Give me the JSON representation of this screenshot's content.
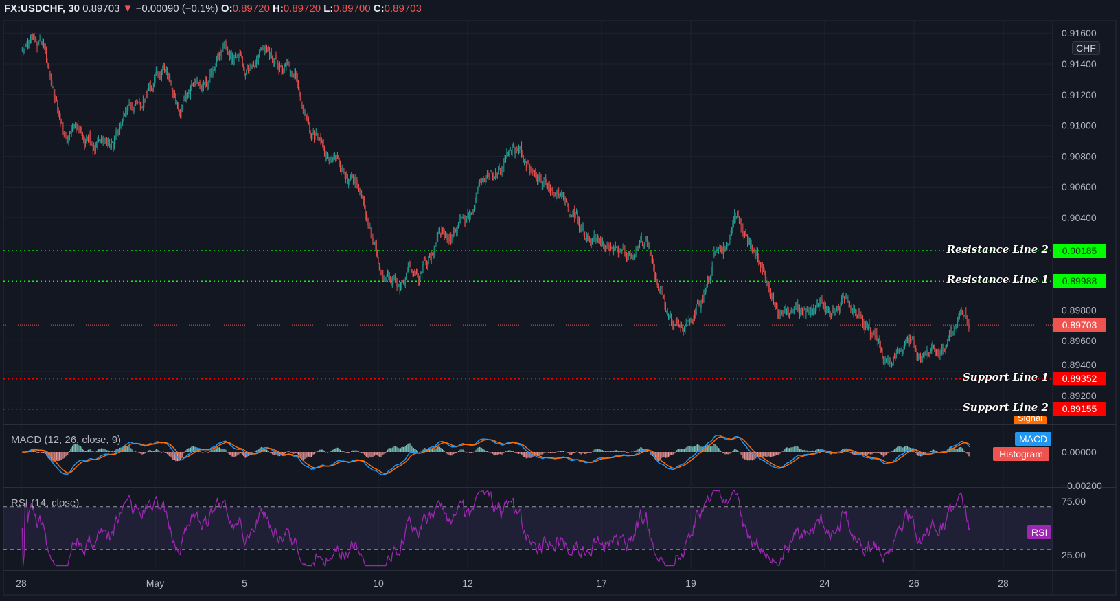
{
  "header": {
    "symbol": "FX:USDCHF, 30",
    "last": "0.89703",
    "change_arrow": "▼",
    "change": "−0.00090 (−0.1%)",
    "o_label": "O:",
    "o": "0.89720",
    "h_label": "H:",
    "h": "0.89720",
    "l_label": "L:",
    "l": "0.89700",
    "c_label": "C:",
    "c": "0.89703"
  },
  "currency_badge": "CHF",
  "colors": {
    "up": "#26a69a",
    "down": "#ef5350",
    "resistance": "#00ff00",
    "support": "#ff0000",
    "macd": "#2196f3",
    "signal": "#ff6d00",
    "histogram": "#ef5350",
    "rsi": "#9c27b0",
    "background": "#131722"
  },
  "levels": [
    {
      "label": "Resistance Line 2",
      "value": "0.90185",
      "price": 0.90185,
      "kind": "resistance"
    },
    {
      "label": "Resistance Line 1",
      "value": "0.89988",
      "price": 0.89988,
      "kind": "resistance"
    },
    {
      "label": "Support Line 1",
      "value": "0.89352",
      "price": 0.89352,
      "kind": "support"
    },
    {
      "label": "Support Line 2",
      "value": "0.89155",
      "price": 0.89155,
      "kind": "support"
    }
  ],
  "current_price": {
    "value": "0.89703",
    "price": 0.89703
  },
  "macd": {
    "title": "MACD (12, 26, close, 9)",
    "signal_label": "Signal",
    "macd_label": "MACD",
    "hist_label": "Histogram",
    "ticks": [
      "0.00000",
      "−0.00200"
    ]
  },
  "rsi": {
    "title": "RSI (14, close)",
    "label": "RSI",
    "ticks": [
      "75.00",
      "25.00"
    ],
    "upper_band": 70,
    "lower_band": 30
  },
  "chart_data": {
    "type": "candlestick",
    "timeframe": "30",
    "price_ticks": [
      "0.91600",
      "0.91400",
      "0.91200",
      "0.91000",
      "0.90800",
      "0.90600",
      "0.90400",
      "0.89800",
      "0.89600",
      "0.89400",
      "0.89200"
    ],
    "ylim": [
      0.8905,
      0.917
    ],
    "x_ticks": [
      "28",
      "May",
      "5",
      "10",
      "12",
      "17",
      "19",
      "24",
      "26",
      "28"
    ],
    "trading_days": [
      "Apr 28",
      "Apr 29",
      "Apr 30",
      "May 3",
      "May 4",
      "May 5",
      "May 6",
      "May 7",
      "May 10",
      "May 11",
      "May 12",
      "May 13",
      "May 14",
      "May 17",
      "May 18",
      "May 19",
      "May 20",
      "May 21",
      "May 24",
      "May 25",
      "May 26",
      "May 27",
      "May 28"
    ],
    "close_path": [
      [
        "Apr 28 00:00",
        0.9149
      ],
      [
        "Apr 28 12:00",
        0.9153
      ],
      [
        "Apr 29 00:00",
        0.9092
      ],
      [
        "Apr 29 12:00",
        0.9092
      ],
      [
        "Apr 30 00:00",
        0.9086
      ],
      [
        "Apr 30 12:00",
        0.9109
      ],
      [
        "May 3 00:00",
        0.9133
      ],
      [
        "May 3 12:00",
        0.9112
      ],
      [
        "May 4 00:00",
        0.9126
      ],
      [
        "May 4 12:00",
        0.9149
      ],
      [
        "May 5 00:00",
        0.9133
      ],
      [
        "May 5 12:00",
        0.9149
      ],
      [
        "May 6 00:00",
        0.9139
      ],
      [
        "May 6 12:00",
        0.9093
      ],
      [
        "May 7 00:00",
        0.9079
      ],
      [
        "May 7 12:00",
        0.9065
      ],
      [
        "May 10 00:00",
        0.901
      ],
      [
        "May 10 12:00",
        0.8996
      ],
      [
        "May 11 00:00",
        0.901
      ],
      [
        "May 11 12:00",
        0.9028
      ],
      [
        "May 12 00:00",
        0.9042
      ],
      [
        "May 12 12:00",
        0.907
      ],
      [
        "May 13 00:00",
        0.9086
      ],
      [
        "May 13 12:00",
        0.907
      ],
      [
        "May 14 00:00",
        0.9058
      ],
      [
        "May 14 12:00",
        0.9033
      ],
      [
        "May 17 00:00",
        0.9024
      ],
      [
        "May 17 12:00",
        0.9019
      ],
      [
        "May 18 00:00",
        0.9028
      ],
      [
        "May 18 12:00",
        0.8977
      ],
      [
        "May 19 00:00",
        0.8973
      ],
      [
        "May 19 12:00",
        0.9014
      ],
      [
        "May 20 00:00",
        0.904
      ],
      [
        "May 20 12:00",
        0.9014
      ],
      [
        "May 21 00:00",
        0.8977
      ],
      [
        "May 21 12:00",
        0.8977
      ],
      [
        "May 24 00:00",
        0.8982
      ],
      [
        "May 24 12:00",
        0.8986
      ],
      [
        "May 25 00:00",
        0.8968
      ],
      [
        "May 25 12:00",
        0.8945
      ],
      [
        "May 26 00:00",
        0.8959
      ],
      [
        "May 26 12:00",
        0.8952
      ],
      [
        "May 27 00:00",
        0.8977
      ],
      [
        "May 27 06:00",
        0.89703
      ]
    ]
  }
}
